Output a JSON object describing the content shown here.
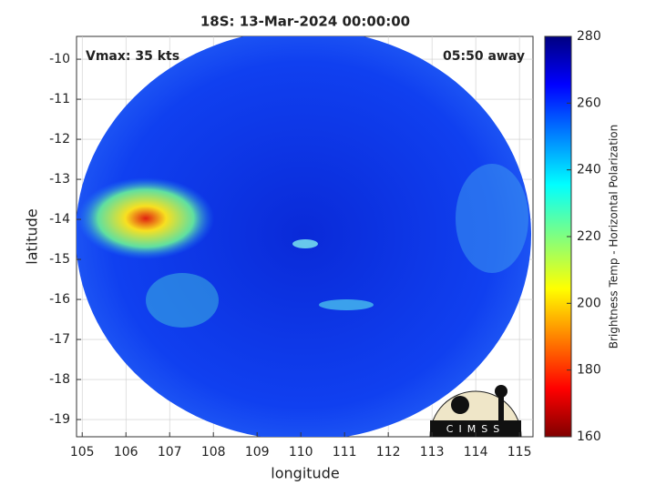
{
  "chart_data": {
    "type": "heatmap",
    "title": "18S: 13-Mar-2024 00:00:00",
    "xlabel": "longitude",
    "ylabel": "latitude",
    "annotations": [
      "Vmax: 35 kts",
      "05:50 away"
    ],
    "logo_text": "CIMSS",
    "xlim": [
      104.87,
      115.31
    ],
    "xticks": [
      105,
      106,
      107,
      108,
      109,
      110,
      111,
      112,
      113,
      114,
      115
    ],
    "ylim": [
      -19.43,
      -9.43
    ],
    "yticks": [
      -19,
      -18,
      -17,
      -16,
      -15,
      -14,
      -13,
      -12,
      -11,
      -10
    ],
    "grid": true,
    "colorbar_label": "Brightness Temp - Horizontal Polarization",
    "clim": [
      160,
      280
    ],
    "cticks": [
      160,
      180,
      200,
      220,
      240,
      260,
      280
    ]
  }
}
